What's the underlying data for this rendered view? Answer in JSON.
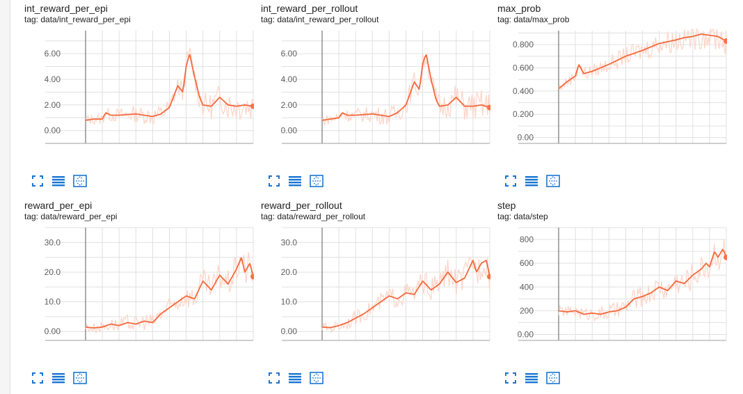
{
  "ui": {
    "accent_color": "#ff7043",
    "smoothed_line_color": "#f4683b",
    "raw_line_color": "#fdd4c6",
    "toolbar_icons": [
      "fullscreen-icon",
      "list-icon",
      "fit-to-data-icon"
    ]
  },
  "cards": [
    {
      "title": "int_reward_per_epi",
      "tag": "tag: data/int_reward_per_epi"
    },
    {
      "title": "int_reward_per_rollout",
      "tag": "tag: data/int_reward_per_rollout"
    },
    {
      "title": "max_prob",
      "tag": "tag: data/max_prob"
    },
    {
      "title": "reward_per_epi",
      "tag": "tag: data/reward_per_epi"
    },
    {
      "title": "reward_per_rollout",
      "tag": "tag: data/reward_per_rollout"
    },
    {
      "title": "step",
      "tag": "tag: data/step"
    }
  ],
  "chart_data": [
    {
      "type": "line",
      "title": "int_reward_per_epi",
      "yticks": [
        "0.00",
        "2.00",
        "4.00",
        "6.00"
      ],
      "ylim": [
        -1.0,
        7.8
      ],
      "xlim": [
        0,
        100
      ],
      "grid": true,
      "series": [
        {
          "x": [
            0,
            5,
            10,
            12,
            15,
            20,
            30,
            40,
            45,
            50,
            55,
            58,
            60,
            62,
            65,
            68,
            70,
            75,
            80,
            85,
            90,
            95,
            100
          ],
          "values": [
            0.8,
            0.9,
            0.9,
            1.4,
            1.2,
            1.2,
            1.3,
            1.1,
            1.3,
            1.8,
            3.5,
            3.0,
            5.0,
            6.0,
            4.2,
            2.6,
            2.0,
            1.9,
            2.6,
            2.0,
            1.9,
            2.0,
            1.9
          ]
        }
      ]
    },
    {
      "type": "line",
      "title": "int_reward_per_rollout",
      "yticks": [
        "0.00",
        "2.00",
        "4.00",
        "6.00"
      ],
      "ylim": [
        -1.0,
        7.8
      ],
      "xlim": [
        0,
        100
      ],
      "grid": true,
      "series": [
        {
          "x": [
            0,
            5,
            10,
            12,
            15,
            20,
            30,
            40,
            45,
            50,
            55,
            58,
            60,
            62,
            65,
            68,
            70,
            75,
            80,
            85,
            90,
            95,
            100
          ],
          "values": [
            0.8,
            0.9,
            1.0,
            1.4,
            1.2,
            1.2,
            1.3,
            1.1,
            1.4,
            2.0,
            3.8,
            3.2,
            5.2,
            6.0,
            4.0,
            2.4,
            1.9,
            2.0,
            2.6,
            1.9,
            1.9,
            2.0,
            1.8
          ]
        }
      ]
    },
    {
      "type": "line",
      "title": "max_prob",
      "yticks": [
        "0.00",
        "0.200",
        "0.400",
        "0.600",
        "0.800"
      ],
      "ylim": [
        -0.05,
        0.92
      ],
      "xlim": [
        0,
        100
      ],
      "grid": true,
      "series": [
        {
          "x": [
            0,
            5,
            10,
            12,
            15,
            20,
            25,
            30,
            40,
            50,
            60,
            70,
            75,
            80,
            85,
            90,
            95,
            100
          ],
          "values": [
            0.42,
            0.48,
            0.53,
            0.63,
            0.55,
            0.57,
            0.6,
            0.63,
            0.7,
            0.75,
            0.81,
            0.84,
            0.86,
            0.87,
            0.89,
            0.88,
            0.87,
            0.83
          ]
        }
      ]
    },
    {
      "type": "line",
      "title": "reward_per_epi",
      "yticks": [
        "0.00",
        "10.0",
        "20.0",
        "30.0"
      ],
      "ylim": [
        -3.0,
        35.0
      ],
      "xlim": [
        0,
        100
      ],
      "grid": true,
      "series": [
        {
          "x": [
            0,
            5,
            10,
            15,
            20,
            25,
            30,
            35,
            40,
            45,
            50,
            55,
            60,
            65,
            70,
            75,
            80,
            85,
            90,
            93,
            95,
            98,
            100
          ],
          "values": [
            1.5,
            1.2,
            1.5,
            2.5,
            2.0,
            3.0,
            2.5,
            3.5,
            3.0,
            6.0,
            8.0,
            10.0,
            12.0,
            11.0,
            17.0,
            14.0,
            19.0,
            16.0,
            21.0,
            25.0,
            20.0,
            23.0,
            18.5
          ]
        }
      ]
    },
    {
      "type": "line",
      "title": "reward_per_rollout",
      "yticks": [
        "0.00",
        "10.0",
        "20.0",
        "30.0"
      ],
      "ylim": [
        -3.0,
        35.0
      ],
      "xlim": [
        0,
        100
      ],
      "grid": true,
      "series": [
        {
          "x": [
            0,
            5,
            10,
            15,
            20,
            25,
            30,
            35,
            40,
            45,
            50,
            55,
            60,
            65,
            70,
            75,
            80,
            85,
            90,
            92,
            95,
            98,
            100
          ],
          "values": [
            1.5,
            1.3,
            2.0,
            3.0,
            4.5,
            6.0,
            8.0,
            10.0,
            12.0,
            11.0,
            13.0,
            12.5,
            17.0,
            14.0,
            16.0,
            20.0,
            16.5,
            18.0,
            24.0,
            20.0,
            23.0,
            24.0,
            18.5
          ]
        }
      ]
    },
    {
      "type": "line",
      "title": "step",
      "yticks": [
        "0.00",
        "200",
        "400",
        "600",
        "800"
      ],
      "ylim": [
        -50,
        900
      ],
      "xlim": [
        0,
        100
      ],
      "grid": true,
      "series": [
        {
          "x": [
            0,
            5,
            10,
            15,
            20,
            25,
            30,
            35,
            40,
            45,
            50,
            55,
            60,
            65,
            70,
            75,
            80,
            85,
            88,
            90,
            93,
            95,
            98,
            100
          ],
          "values": [
            200,
            190,
            200,
            170,
            180,
            170,
            190,
            200,
            230,
            300,
            320,
            350,
            400,
            370,
            450,
            430,
            500,
            550,
            600,
            570,
            700,
            650,
            720,
            650
          ]
        }
      ]
    }
  ]
}
